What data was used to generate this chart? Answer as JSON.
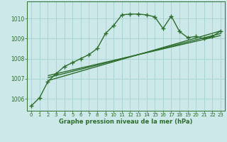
{
  "title": "",
  "xlabel": "Graphe pression niveau de la mer (hPa)",
  "ylabel": "",
  "background_color": "#cce8e8",
  "grid_color": "#aad4d4",
  "line_color": "#2d6e2d",
  "xlim": [
    -0.5,
    23.5
  ],
  "ylim": [
    1005.4,
    1010.85
  ],
  "yticks": [
    1006,
    1007,
    1008,
    1009,
    1010
  ],
  "xticks": [
    0,
    1,
    2,
    3,
    4,
    5,
    6,
    7,
    8,
    9,
    10,
    11,
    12,
    13,
    14,
    15,
    16,
    17,
    18,
    19,
    20,
    21,
    22,
    23
  ],
  "main_x": [
    0,
    1,
    2,
    3,
    4,
    5,
    6,
    7,
    8,
    9,
    10,
    11,
    12,
    13,
    14,
    15,
    16,
    17,
    18,
    19,
    20,
    21,
    22,
    23
  ],
  "main_y": [
    1005.65,
    1006.05,
    1006.85,
    1007.25,
    1007.6,
    1007.8,
    1008.0,
    1008.2,
    1008.5,
    1009.25,
    1009.65,
    1010.18,
    1010.22,
    1010.22,
    1010.18,
    1010.08,
    1009.5,
    1010.12,
    1009.35,
    1009.05,
    1009.1,
    1009.0,
    1009.1,
    1009.38
  ],
  "line1_x": [
    2,
    23
  ],
  "line1_y": [
    1006.9,
    1009.38
  ],
  "line2_x": [
    2,
    23
  ],
  "line2_y": [
    1007.05,
    1009.25
  ],
  "line3_x": [
    2,
    23
  ],
  "line3_y": [
    1007.15,
    1009.15
  ],
  "marker": "+",
  "marker_size": 4,
  "line_width": 1.0
}
